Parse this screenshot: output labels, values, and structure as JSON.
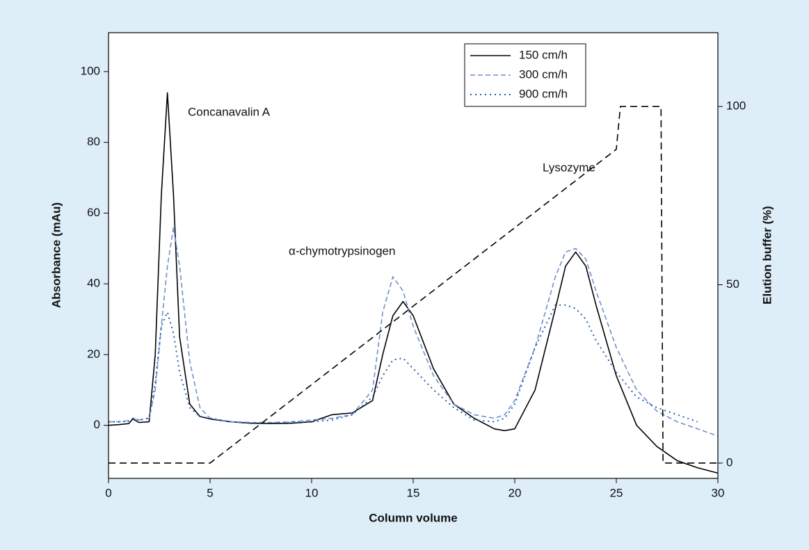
{
  "chart_data": {
    "type": "line",
    "xlabel": "Column volume",
    "ylabel": "Absorbance (mAu)",
    "y2label": "Elution buffer (%)",
    "annotations": [
      "Concanavalin A",
      "α-chymotrypsinogen",
      "Lysozyme"
    ],
    "xlim": [
      0,
      30
    ],
    "xticks": [
      0,
      5,
      10,
      15,
      20,
      25,
      30
    ],
    "ylim": [
      -15,
      111
    ],
    "yticks": [
      0,
      20,
      40,
      60,
      80,
      100
    ],
    "y2lim": [
      -4.3,
      120.7
    ],
    "y2ticks": [
      0,
      50,
      100
    ],
    "legend": "top-right",
    "series": [
      {
        "name": "150 cm/h",
        "color": "#000000",
        "dash": "solid",
        "x": [
          0,
          0.5,
          1,
          1.2,
          1.5,
          2,
          2.3,
          2.6,
          2.9,
          3.2,
          3.5,
          4,
          4.5,
          5,
          6,
          7,
          8,
          9,
          10,
          11,
          12,
          13,
          13.5,
          14,
          14.5,
          15,
          16,
          17,
          18,
          19,
          19.5,
          20,
          21,
          22,
          22.5,
          23,
          23.5,
          24,
          25,
          26,
          27,
          28,
          29,
          30
        ],
        "values": [
          0,
          0.2,
          0.5,
          1.8,
          0.8,
          1,
          20,
          65,
          94,
          65,
          25,
          6,
          2.5,
          1.8,
          1,
          0.6,
          0.5,
          0.6,
          1,
          3,
          3.5,
          7,
          20,
          31,
          35,
          31,
          16,
          6,
          2,
          -1,
          -1.5,
          -1,
          10,
          33,
          45,
          49,
          45,
          34,
          14,
          0,
          -6,
          -10,
          -12,
          -13.5
        ]
      },
      {
        "name": "300 cm/h",
        "color": "#6f8fc8",
        "dash": "dashed",
        "x": [
          0,
          0.5,
          1,
          1.2,
          1.5,
          2,
          2.3,
          2.6,
          2.9,
          3.2,
          3.5,
          4,
          4.5,
          5,
          6,
          7,
          8,
          9,
          10,
          11,
          12,
          13,
          13.5,
          14,
          14.5,
          15,
          16,
          17,
          18,
          19,
          19.5,
          20,
          21,
          22,
          22.5,
          23,
          23.5,
          24,
          25,
          26,
          27,
          28,
          29,
          30
        ],
        "values": [
          1,
          1,
          1.3,
          2,
          1.5,
          2,
          10,
          28,
          45,
          56,
          45,
          18,
          5,
          2,
          1,
          0.8,
          0.8,
          1,
          1.5,
          2,
          3,
          10,
          32,
          42,
          38,
          28,
          14,
          6,
          3,
          2,
          3,
          7,
          22,
          42,
          49,
          50,
          47,
          38,
          22,
          10,
          4,
          1,
          -1,
          -3
        ]
      },
      {
        "name": "900 cm/h",
        "color": "#1f5fae",
        "dash": "dotted",
        "x": [
          0,
          0.5,
          1,
          1.2,
          1.5,
          2,
          2.3,
          2.6,
          2.9,
          3.2,
          3.5,
          4,
          4.5,
          5,
          6,
          7,
          8,
          9,
          10,
          11,
          12,
          13,
          13.5,
          14,
          14.5,
          15,
          16,
          17,
          18,
          19,
          19.5,
          20,
          21,
          22,
          22.5,
          23,
          23.5,
          24,
          25,
          26,
          27,
          28,
          29,
          30
        ],
        "values": [
          1,
          1,
          1.2,
          2,
          1.5,
          2,
          12,
          28,
          32,
          26,
          15,
          5,
          2.5,
          2,
          1,
          0.7,
          0.7,
          0.8,
          1,
          1.5,
          3,
          8,
          14,
          18.5,
          19,
          16,
          10,
          5,
          1.5,
          1,
          2,
          6,
          22,
          34,
          34,
          33,
          30,
          24,
          15,
          8,
          5,
          3,
          1,
          null
        ]
      },
      {
        "color": "#000000",
        "dash": "longdash",
        "axis": "y2",
        "x": [
          0,
          5,
          25,
          25.2,
          27.2,
          27.3,
          30
        ],
        "values": [
          0,
          0,
          88,
          100,
          100,
          0,
          0
        ]
      }
    ]
  }
}
